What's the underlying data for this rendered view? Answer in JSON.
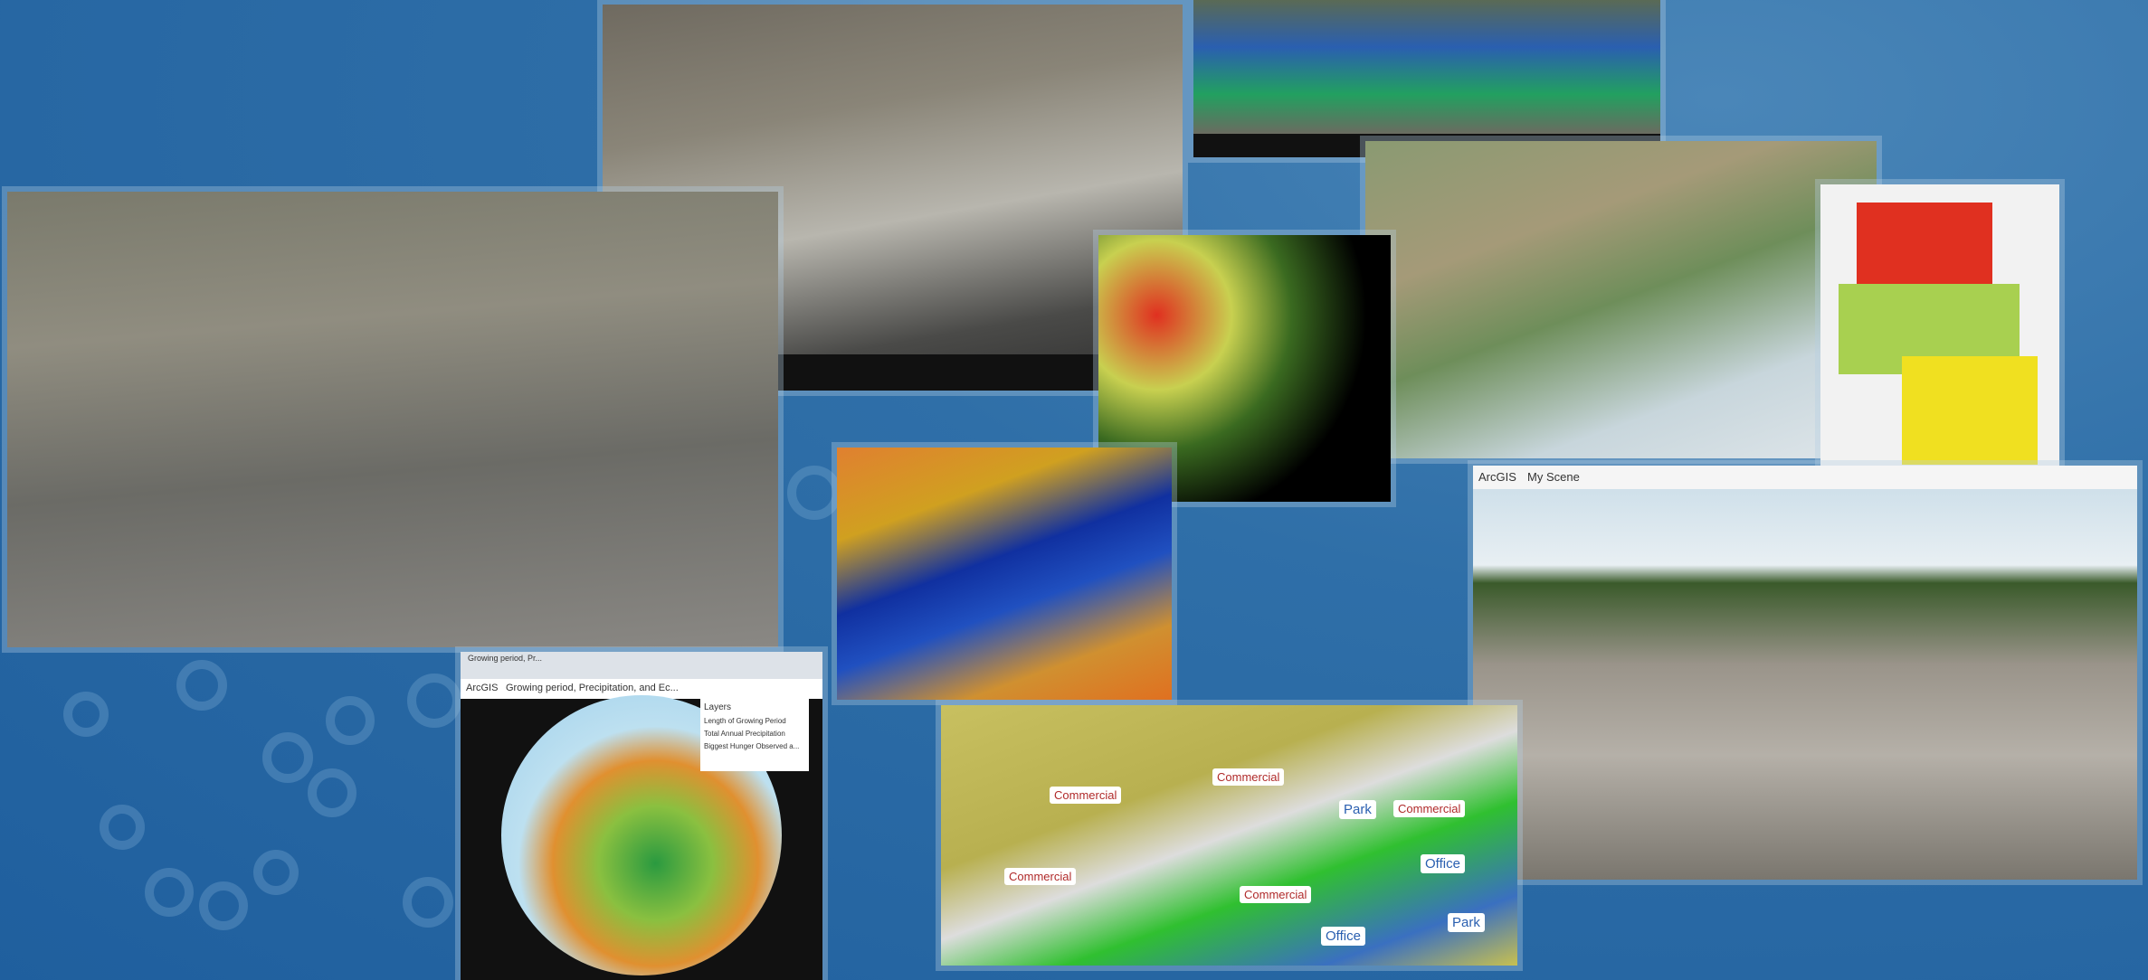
{
  "globe_app": {
    "tab": "Growing period, Pr...",
    "brand": "ArcGIS",
    "title": "Growing period, Precipitation, and Ec...",
    "layers_title": "Layers",
    "layers": [
      "Length of Growing Period",
      "Total Annual Precipitation",
      "Biggest Hunger Observed a..."
    ]
  },
  "scene_app": {
    "brand": "ArcGIS",
    "title": "My Scene"
  },
  "urban": {
    "labels": [
      "Commercial",
      "Commercial",
      "Commercial",
      "Commercial",
      "Commercial",
      "Park",
      "Office",
      "Park",
      "Office"
    ]
  }
}
